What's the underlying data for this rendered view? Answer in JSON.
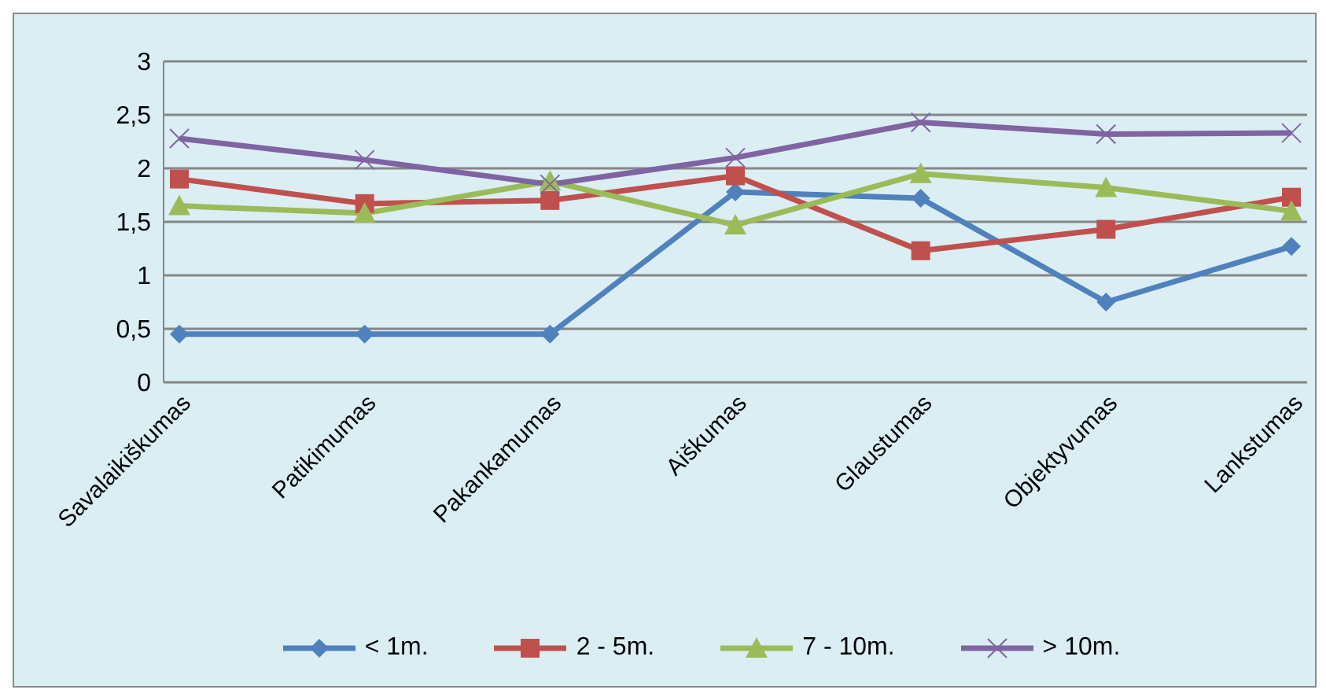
{
  "chart_data": {
    "type": "line",
    "categories": [
      "Savalaikiškumas",
      "Patikimumas",
      "Pakankamumas",
      "Aiškumas",
      "Glaustumas",
      "Objektyvumas",
      "Lankstumas"
    ],
    "series": [
      {
        "name": "< 1m.",
        "color": "#4f81bd",
        "marker": "diamond",
        "values": [
          0.45,
          0.45,
          0.45,
          1.78,
          1.72,
          0.75,
          1.27
        ]
      },
      {
        "name": "2 - 5m.",
        "color": "#c0504d",
        "marker": "square",
        "values": [
          1.9,
          1.67,
          1.7,
          1.93,
          1.23,
          1.43,
          1.73
        ]
      },
      {
        "name": "7 - 10m.",
        "color": "#9bbb59",
        "marker": "triangle",
        "values": [
          1.65,
          1.58,
          1.88,
          1.47,
          1.95,
          1.82,
          1.6
        ]
      },
      {
        "name": "> 10m.",
        "color": "#8064a2",
        "marker": "cross",
        "values": [
          2.28,
          2.08,
          1.85,
          2.1,
          2.43,
          2.32,
          2.33
        ]
      }
    ],
    "ylim": [
      0,
      3
    ],
    "yticks": [
      0,
      {
        "value": 0.5,
        "label": "0,5"
      },
      1,
      {
        "value": 1.5,
        "label": "1,5"
      },
      2,
      {
        "value": 2.5,
        "label": "2,5"
      },
      3
    ],
    "grid": "y",
    "legend": "bottom",
    "line_style": "solid"
  }
}
